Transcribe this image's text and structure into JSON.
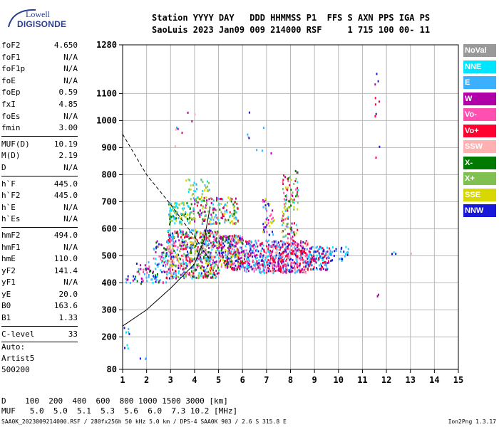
{
  "logo": {
    "line1": "Lowell",
    "line2": "DIGISONDE"
  },
  "header": {
    "line1": "Station YYYY DAY   DDD HHMMSS P1  FFS S AXN PPS IGA PS",
    "line2": "SaoLuis 2023 Jan09 009 214000 RSF     1 715 100 00- 11"
  },
  "params": [
    {
      "name": "foF2",
      "value": "4.650"
    },
    {
      "name": "foF1",
      "value": "N/A"
    },
    {
      "name": "foF1p",
      "value": "N/A"
    },
    {
      "name": "foE",
      "value": "N/A"
    },
    {
      "name": "foEp",
      "value": "0.59"
    },
    {
      "name": "fxI",
      "value": "4.85"
    },
    {
      "name": "foEs",
      "value": "N/A"
    },
    {
      "name": "fmin",
      "value": "3.00"
    },
    {
      "sep": true
    },
    {
      "name": "MUF(D)",
      "value": "10.19"
    },
    {
      "name": "M(D)",
      "value": "2.19"
    },
    {
      "name": "D",
      "value": "N/A"
    },
    {
      "sep": true
    },
    {
      "name": "h`F",
      "value": "445.0"
    },
    {
      "name": "h`F2",
      "value": "445.0"
    },
    {
      "name": "h`E",
      "value": "N/A"
    },
    {
      "name": "h`Es",
      "value": "N/A"
    },
    {
      "sep": true
    },
    {
      "name": "hmF2",
      "value": "494.0"
    },
    {
      "name": "hmF1",
      "value": "N/A"
    },
    {
      "name": "hmE",
      "value": "110.0"
    },
    {
      "name": "yF2",
      "value": "141.4"
    },
    {
      "name": "yF1",
      "value": "N/A"
    },
    {
      "name": "yE",
      "value": "20.0"
    },
    {
      "name": "B0",
      "value": "163.6"
    },
    {
      "name": "B1",
      "value": "1.33"
    },
    {
      "sep": true
    },
    {
      "name": "C-level",
      "value": "33"
    },
    {
      "sep": true
    }
  ],
  "auto": {
    "line1": "Auto:",
    "line2": "Artist5",
    "line3": "500200"
  },
  "legend": [
    {
      "label": "NoVal",
      "color": "#999999"
    },
    {
      "label": "NNE",
      "color": "#00e5ff"
    },
    {
      "label": "E",
      "color": "#3ab0ff"
    },
    {
      "label": "W",
      "color": "#b000a8"
    },
    {
      "label": "Vo-",
      "color": "#ff4fb0"
    },
    {
      "label": "Vo+",
      "color": "#ff0030"
    },
    {
      "label": "SSW",
      "color": "#ffb0b0"
    },
    {
      "label": "X-",
      "color": "#007a00"
    },
    {
      "label": "X+",
      "color": "#7fc050"
    },
    {
      "label": "SSE",
      "color": "#d8d800"
    },
    {
      "label": "NNW",
      "color": "#1818d8"
    }
  ],
  "footer": {
    "d_line": "D    100  200  400  600  800 1000 1500 3000 [km]",
    "muf_line": "MUF   5.0  5.0  5.1  5.3  5.6  6.0  7.3 10.2 [MHz]",
    "file_line": "SAA0K_2023009214000.RSF / 280fx256h 50 kHz 5.0 km / DPS-4 SAA0K 903 / 2.6 S 315.8 E",
    "version": "Ion2Png 1.3.17"
  },
  "chart_data": {
    "type": "scatter",
    "x_ticks": [
      1,
      2,
      3,
      4,
      5,
      6,
      7,
      8,
      9,
      10,
      11,
      12,
      13,
      14,
      15
    ],
    "y_ticks": [
      80,
      200,
      300,
      400,
      500,
      600,
      700,
      800,
      900,
      1000,
      1100,
      1280
    ],
    "xlim": [
      1,
      15
    ],
    "ylim": [
      80,
      1280
    ],
    "grid": true,
    "xlabel": "",
    "ylabel": "",
    "clusters": [
      {
        "x": [
          1.0,
          1.25
        ],
        "y": [
          140,
          250
        ],
        "n": 8,
        "colors": [
          "E",
          "NNE",
          "NNW"
        ]
      },
      {
        "x": [
          1.6,
          2.0
        ],
        "y": [
          120,
          130
        ],
        "n": 3,
        "colors": [
          "E",
          "NNW"
        ]
      },
      {
        "x": [
          1.0,
          1.5
        ],
        "y": [
          400,
          440
        ],
        "n": 10,
        "colors": [
          "NNW",
          "W",
          "E"
        ]
      },
      {
        "x": [
          1.5,
          2.2
        ],
        "y": [
          400,
          480
        ],
        "n": 35,
        "colors": [
          "NNW",
          "W",
          "E",
          "X-",
          "Vo-"
        ]
      },
      {
        "x": [
          2.2,
          2.8
        ],
        "y": [
          400,
          560
        ],
        "n": 70,
        "colors": [
          "NNW",
          "W",
          "E",
          "Vo-",
          "X-",
          "NNE"
        ]
      },
      {
        "x": [
          2.8,
          5.0
        ],
        "y": [
          420,
          600
        ],
        "n": 650,
        "colors": [
          "W",
          "Vo+",
          "NNW",
          "E",
          "Vo-",
          "X-",
          "SSE",
          "NNE",
          "SSW",
          "X+"
        ]
      },
      {
        "x": [
          5.0,
          6.0
        ],
        "y": [
          450,
          580
        ],
        "n": 260,
        "colors": [
          "W",
          "Vo+",
          "NNW",
          "E",
          "Vo-",
          "X-",
          "SSE"
        ]
      },
      {
        "x": [
          6.0,
          7.2
        ],
        "y": [
          440,
          560
        ],
        "n": 220,
        "colors": [
          "E",
          "NNE",
          "W",
          "Vo+",
          "NNW",
          "Vo-"
        ]
      },
      {
        "x": [
          7.2,
          8.7
        ],
        "y": [
          440,
          560
        ],
        "n": 360,
        "colors": [
          "Vo+",
          "Vo-",
          "W",
          "E",
          "NNW",
          "SSW",
          "Vo+"
        ]
      },
      {
        "x": [
          8.7,
          9.6
        ],
        "y": [
          450,
          540
        ],
        "n": 120,
        "colors": [
          "E",
          "NNE",
          "NNW",
          "Vo+",
          "W"
        ]
      },
      {
        "x": [
          9.6,
          10.4
        ],
        "y": [
          480,
          540
        ],
        "n": 30,
        "colors": [
          "E",
          "NNE",
          "NNW"
        ]
      },
      {
        "x": [
          2.9,
          3.8
        ],
        "y": [
          620,
          700
        ],
        "n": 100,
        "colors": [
          "NNE",
          "SSE",
          "E",
          "X-",
          "X+"
        ]
      },
      {
        "x": [
          3.8,
          5.8
        ],
        "y": [
          620,
          720
        ],
        "n": 180,
        "colors": [
          "SSE",
          "X+",
          "E",
          "NNE",
          "X-",
          "W",
          "Vo+"
        ]
      },
      {
        "x": [
          3.6,
          4.6
        ],
        "y": [
          700,
          790
        ],
        "n": 40,
        "colors": [
          "SSE",
          "E",
          "NNE",
          "X+"
        ]
      },
      {
        "x": [
          6.8,
          7.3
        ],
        "y": [
          580,
          720
        ],
        "n": 40,
        "colors": [
          "NNW",
          "W",
          "Vo-",
          "E",
          "SSE"
        ]
      },
      {
        "x": [
          7.6,
          8.3
        ],
        "y": [
          560,
          820
        ],
        "n": 110,
        "colors": [
          "Vo-",
          "SSE",
          "X+",
          "W",
          "Vo+",
          "X-",
          "NNE"
        ]
      },
      {
        "x": [
          11.5,
          11.7
        ],
        "y": [
          850,
          1200
        ],
        "n": 10,
        "colors": [
          "SSW",
          "W",
          "Vo+",
          "NNW"
        ]
      },
      {
        "x": [
          11.5,
          11.7
        ],
        "y": [
          330,
          360
        ],
        "n": 2,
        "colors": [
          "W"
        ]
      },
      {
        "x": [
          12.0,
          13.2
        ],
        "y": [
          510,
          530
        ],
        "n": 4,
        "colors": [
          "SSW",
          "NNW",
          "NNE"
        ]
      },
      {
        "x": [
          2.9,
          4.3
        ],
        "y": [
          900,
          1040
        ],
        "n": 8,
        "colors": [
          "W",
          "SSW",
          "Vo+",
          "E"
        ]
      },
      {
        "x": [
          6.0,
          7.2
        ],
        "y": [
          860,
          1100
        ],
        "n": 8,
        "colors": [
          "E",
          "NNW",
          "SSW",
          "W"
        ]
      }
    ],
    "curves": [
      {
        "style": "solid",
        "x": [
          1.0,
          2.0,
          3.0,
          4.0,
          4.4,
          4.65
        ],
        "y": [
          240,
          300,
          380,
          470,
          560,
          680
        ]
      },
      {
        "style": "dashed",
        "x": [
          1.0,
          2.0,
          3.0,
          4.0,
          4.6
        ],
        "y": [
          950,
          800,
          690,
          570,
          490
        ]
      }
    ]
  }
}
